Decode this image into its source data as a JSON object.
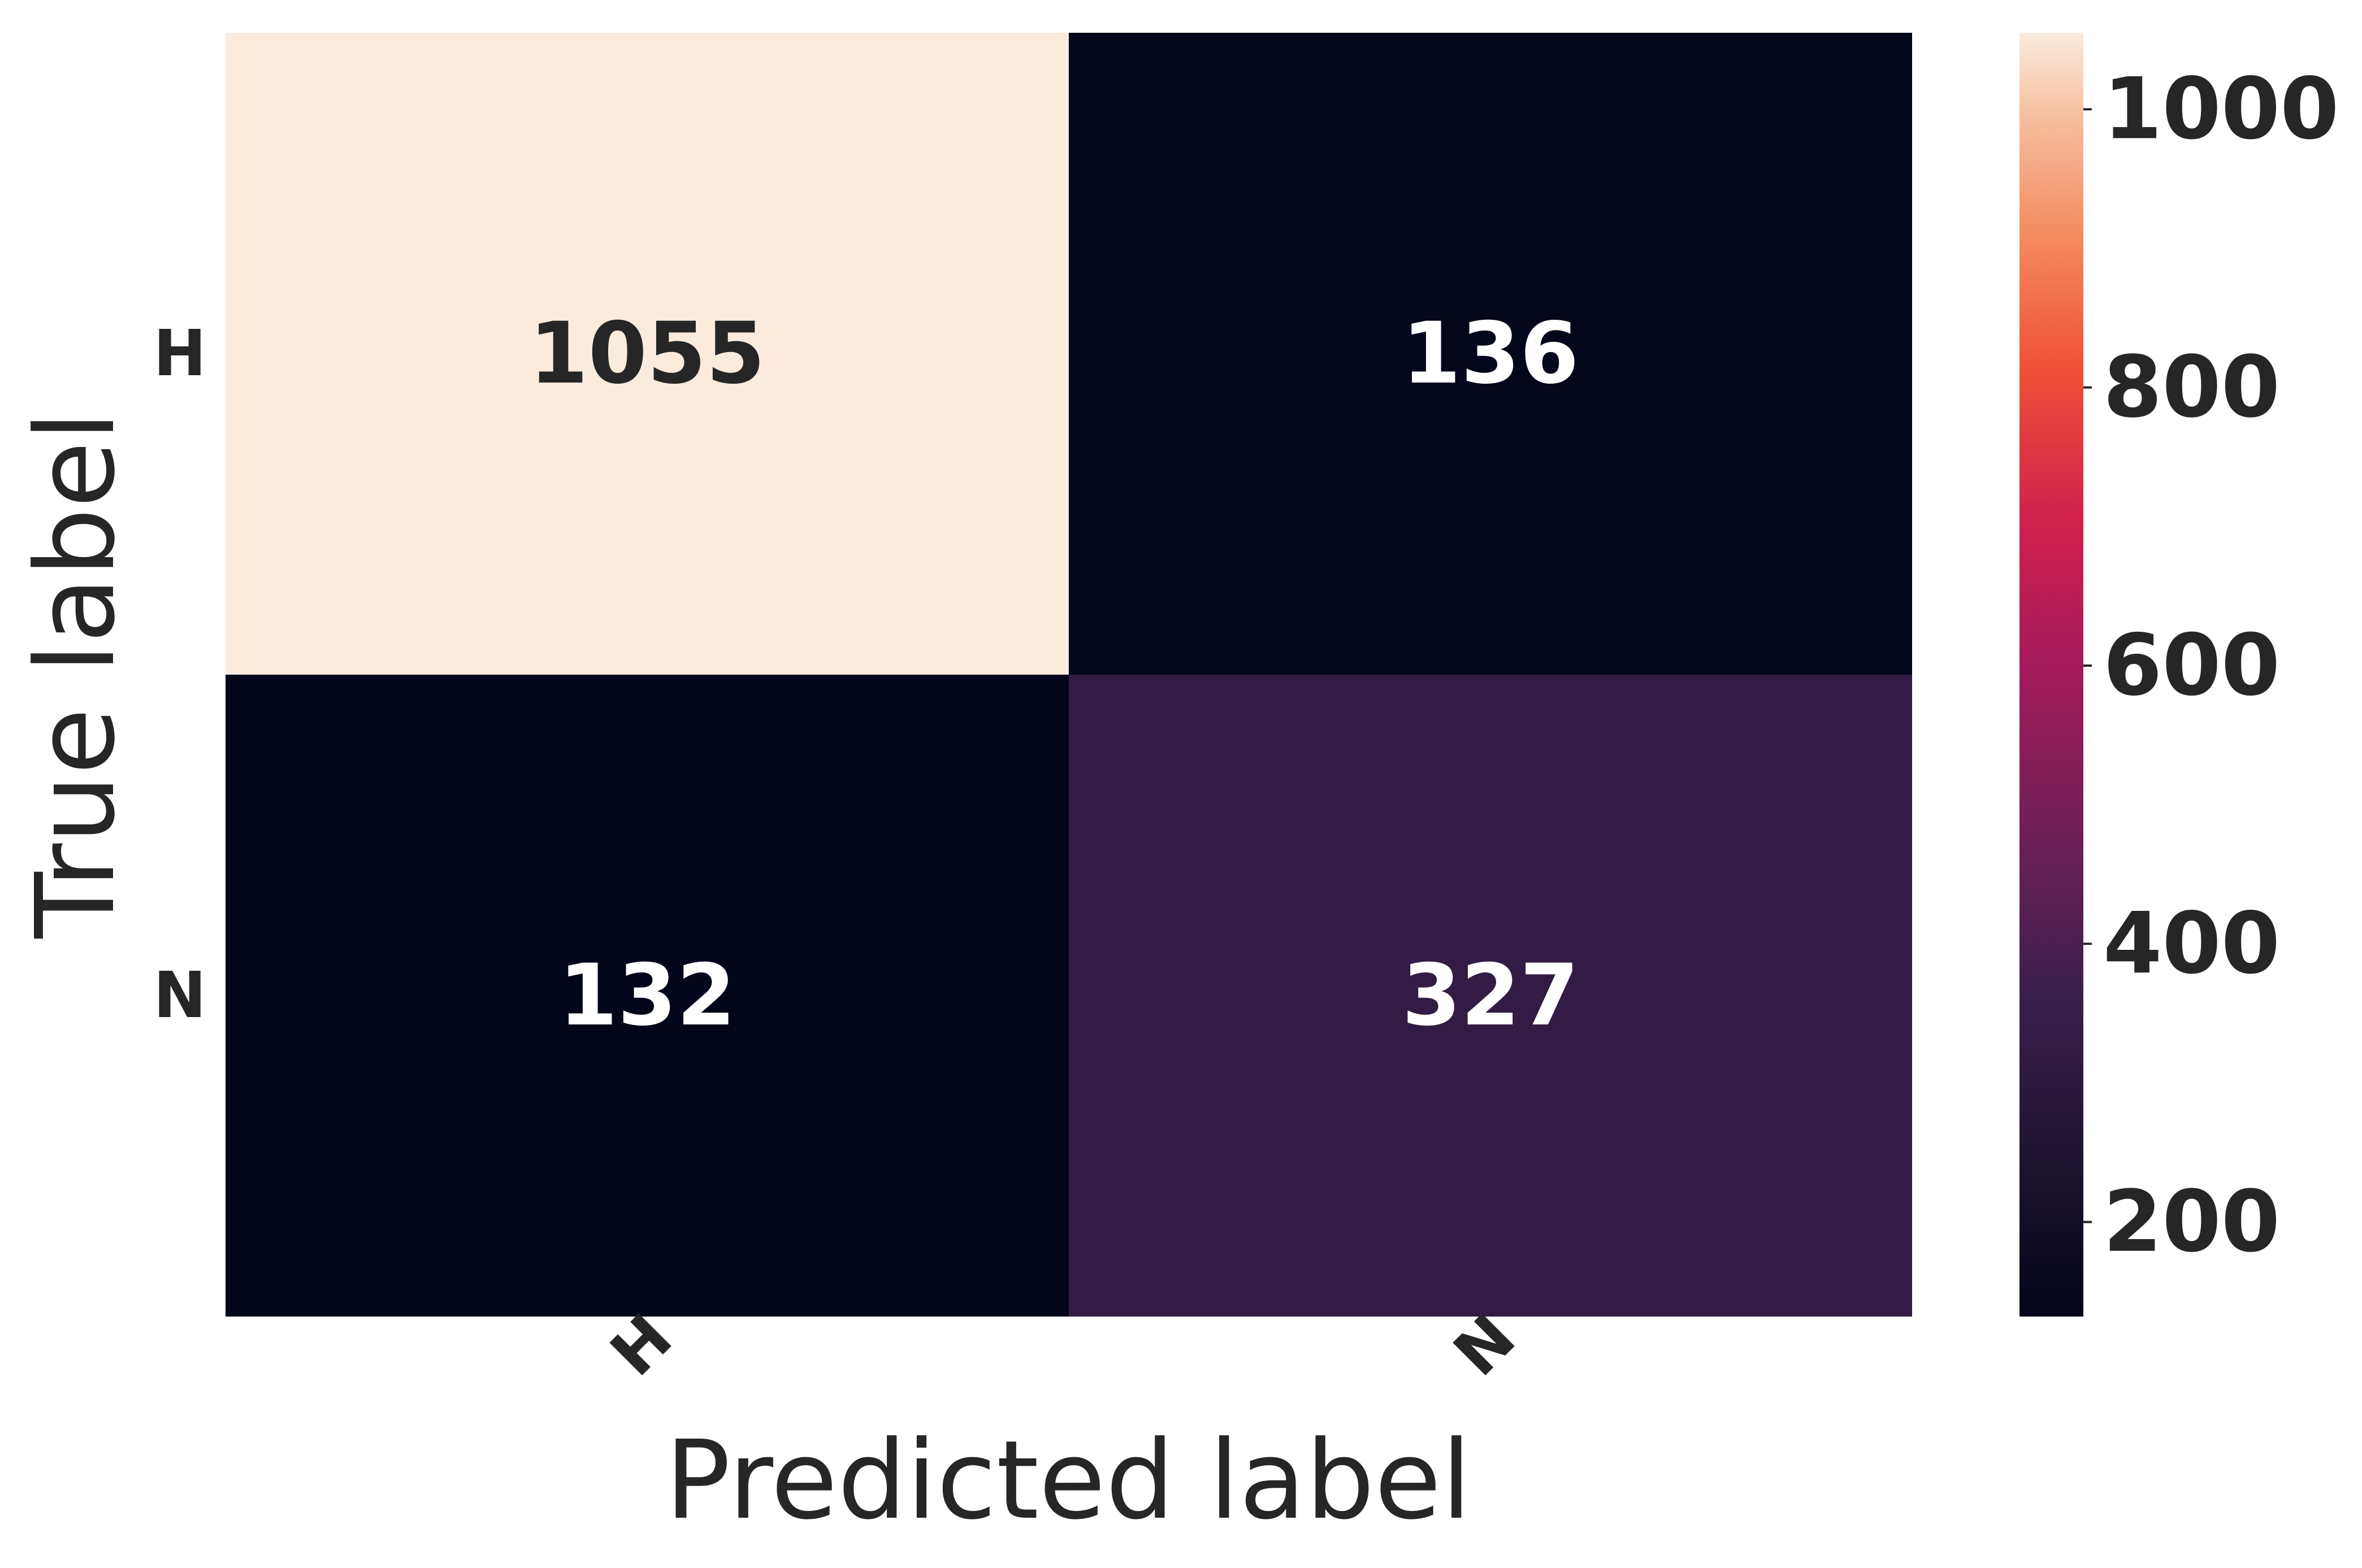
{
  "chart_data": {
    "type": "heatmap",
    "title": "",
    "xlabel": "Predicted label",
    "ylabel": "True label",
    "x_categories": [
      "H",
      "N"
    ],
    "y_categories": [
      "H",
      "N"
    ],
    "values": [
      [
        1055,
        136
      ],
      [
        132,
        327
      ]
    ],
    "colormap": "rocket",
    "colorbar": {
      "range": [
        132,
        1055
      ],
      "ticks": [
        200,
        400,
        600,
        800,
        1000
      ]
    },
    "grid": false
  }
}
